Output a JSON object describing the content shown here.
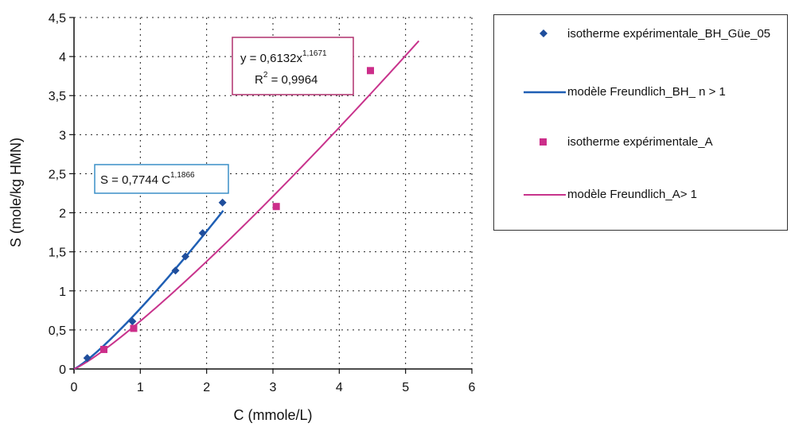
{
  "chart_data": {
    "type": "scatter",
    "xlabel": "C (mmole/L)",
    "ylabel": "S (mole/kg HMN)",
    "xlim": [
      0,
      6
    ],
    "ylim": [
      0,
      4.5
    ],
    "xticks": [
      "0",
      "1",
      "2",
      "3",
      "4",
      "5",
      "6"
    ],
    "yticks": [
      "0",
      "0,5",
      "1",
      "1,5",
      "2",
      "2,5",
      "3",
      "3,5",
      "4",
      "4,5"
    ],
    "grid": true,
    "legend_position": "right",
    "series": [
      {
        "name": "isotherme expérimentale_BH_Güe_05",
        "kind": "points",
        "marker": "diamond",
        "color": "#1f4e9c",
        "x": [
          0.2,
          0.88,
          1.53,
          1.68,
          1.94,
          2.24
        ],
        "y": [
          0.14,
          0.61,
          1.26,
          1.44,
          1.74,
          2.13
        ]
      },
      {
        "name": "modèle Freundlich_BH_ n > 1",
        "kind": "line",
        "color": "#1f5fb4",
        "equation": {
          "a": 0.7744,
          "n": 1.1866
        },
        "x_range": [
          0,
          2.25
        ]
      },
      {
        "name": "isotherme expérimentale_A",
        "kind": "points",
        "marker": "square",
        "color": "#cc2e8a",
        "x": [
          0.45,
          0.9,
          3.05,
          4.47
        ],
        "y": [
          0.25,
          0.52,
          2.08,
          3.82
        ]
      },
      {
        "name": "modèle Freundlich_A> 1",
        "kind": "line",
        "color": "#c8338c",
        "equation": {
          "a": 0.6132,
          "n": 1.1671
        },
        "x_range": [
          0,
          5.2
        ]
      }
    ],
    "annotations": [
      {
        "id": "eq-a",
        "line1": {
          "prefix": "y = 0,6132x",
          "sup": "1,1671"
        },
        "line2": {
          "prefix": "R",
          "sup": "2",
          "suffix": " = 0,9964"
        },
        "border_color": "#b0306e"
      },
      {
        "id": "eq-bh",
        "line1": {
          "prefix": "S = 0,7744 C",
          "sup": "1,1866"
        },
        "border_color": "#3a8fc7"
      }
    ]
  }
}
